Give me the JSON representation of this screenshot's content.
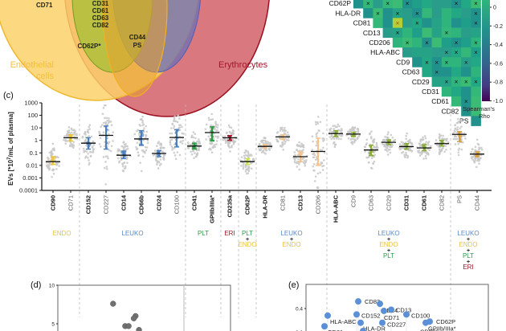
{
  "panels": {
    "c": "(c)",
    "d": "(d)",
    "e": "(e)"
  },
  "venn": {
    "labels": {
      "endothelial_line1": "Endothelial",
      "endothelial_line2": "cells",
      "erythrocytes": "Erythrocytes"
    },
    "colors": {
      "endothelial": "#f9c940",
      "erythrocytes": "#c0202a",
      "platelets": "#9acd32",
      "leukocytes": "#6a6fb8"
    },
    "markers": {
      "endo_only": [
        "CD71"
      ],
      "leuko_endo_plt": [
        "CD31",
        "CD61",
        "CD63",
        "CD82"
      ],
      "plt_endo": [
        "CD62P*"
      ],
      "all": [
        "CD44",
        "PS"
      ]
    }
  },
  "heatmap": {
    "row_labels": [
      "CD62P",
      "HLA-DR",
      "CD81",
      "CD13",
      "CD206",
      "HLA-ABC",
      "CD9",
      "CD63",
      "CD29",
      "CD31",
      "CD61",
      "CD82",
      "PS"
    ],
    "colorbar": {
      "ticks": [
        "0",
        "-0.2",
        "-0.4",
        "-0.6",
        "-0.8",
        "-1.0"
      ],
      "title_line1": "Spearman's",
      "title_line2": "Rho"
    },
    "mark": "×"
  },
  "chart_data": [
    {
      "type": "scatter",
      "title": "",
      "xlabel": "",
      "ylabel": "EVs [*10^7/mL of plasma]",
      "yscale": "log",
      "ylim": [
        0.0001,
        1000
      ],
      "ytick_labels": [
        "1000",
        "100",
        "10",
        "1",
        "0.1",
        "0.01",
        "0.001",
        "0.0001"
      ],
      "categories": [
        "CD90",
        "CD71",
        "CD152",
        "CD227",
        "CD14",
        "CD66b",
        "CD24",
        "CD100",
        "CD41",
        "GPIIb/IIIa*",
        "CD235a",
        "CD62P",
        "HLA-DR",
        "CD81",
        "CD13",
        "CD206",
        "HLA-ABC",
        "CD9",
        "CD63",
        "CD29",
        "CD31",
        "CD61",
        "CD82",
        "PS",
        "CD44"
      ],
      "bold_categories": [
        "CD90",
        "CD152",
        "CD14",
        "CD66b",
        "CD24",
        "CD41",
        "GPIIb/IIIa*",
        "CD235a",
        "CD62P",
        "HLA-DR",
        "CD13",
        "HLA-ABC",
        "CD31",
        "CD61"
      ],
      "medians": [
        0.02,
        1.6,
        0.6,
        2.5,
        0.065,
        1.3,
        0.09,
        1.7,
        0.35,
        4.2,
        1.6,
        0.02,
        0.33,
        1.9,
        0.05,
        0.13,
        3.5,
        3.2,
        0.17,
        0.7,
        0.32,
        0.25,
        0.55,
        3.0,
        0.08
      ],
      "iqr_low": [
        0.012,
        0.9,
        0.2,
        0.2,
        0.035,
        0.4,
        0.05,
        0.3,
        0.2,
        0.9,
        1.0,
        0.012,
        0.25,
        1.2,
        0.02,
        0.01,
        2.0,
        2.0,
        0.06,
        0.45,
        0.2,
        0.15,
        0.35,
        0.8,
        0.05
      ],
      "iqr_high": [
        0.05,
        2.8,
        1.6,
        14,
        0.14,
        6,
        0.15,
        7,
        0.6,
        12,
        2.4,
        0.035,
        0.45,
        2.8,
        0.12,
        1.5,
        6,
        4.5,
        0.4,
        1.1,
        0.55,
        0.45,
        1.0,
        5.0,
        0.12
      ],
      "group_colors": [
        "#e8c440",
        "#e8c440",
        "#4a7fc0",
        "#4a7fc0",
        "#4a7fc0",
        "#4a7fc0",
        "#4a7fc0",
        "#4a7fc0",
        "#2e9a45",
        "#2e9a45",
        "#a0182a",
        "#c8e050",
        "#f5c28a",
        "#f5c28a",
        "#f5c28a",
        "#f5c28a",
        "#8aac3a",
        "#8aac3a",
        "#8aac3a",
        "#8aac3a",
        "#8aac3a",
        "#8aac3a",
        "#8aac3a",
        "#d9a040",
        "#d9a040"
      ],
      "groups": [
        {
          "lines": [
            {
              "text": "ENDO",
              "color": "#e8c440"
            }
          ],
          "span": [
            0,
            1
          ]
        },
        {
          "lines": [
            {
              "text": "LEUKO",
              "color": "#5a8ac4"
            }
          ],
          "span": [
            2,
            7
          ]
        },
        {
          "lines": [
            {
              "text": "PLT",
              "color": "#2e9a45"
            }
          ],
          "span": [
            8,
            9
          ]
        },
        {
          "lines": [
            {
              "text": "ERI",
              "color": "#a0182a"
            }
          ],
          "span": [
            10,
            10
          ]
        },
        {
          "lines": [
            {
              "text": "PLT",
              "color": "#2e9a45"
            },
            {
              "text": "+",
              "color": "#222222"
            },
            {
              "text": "ENDO",
              "color": "#e8c440"
            }
          ],
          "span": [
            11,
            11
          ]
        },
        {
          "lines": [
            {
              "text": "LEUKO",
              "color": "#5a8ac4"
            },
            {
              "text": "+",
              "color": "#222222"
            },
            {
              "text": "ENDO",
              "color": "#e8c440"
            }
          ],
          "span": [
            12,
            15
          ]
        },
        {
          "lines": [
            {
              "text": "LEUKO",
              "color": "#5a8ac4"
            },
            {
              "text": "+",
              "color": "#222222"
            },
            {
              "text": "ENDO",
              "color": "#e8c440"
            },
            {
              "text": "+",
              "color": "#222222"
            },
            {
              "text": "PLT",
              "color": "#2e9a45"
            }
          ],
          "span": [
            16,
            22
          ]
        },
        {
          "lines": [
            {
              "text": "LEUKO",
              "color": "#5a8ac4"
            },
            {
              "text": "+",
              "color": "#222222"
            },
            {
              "text": "ENDO",
              "color": "#e8c440"
            },
            {
              "text": "+",
              "color": "#222222"
            },
            {
              "text": "PLT",
              "color": "#2e9a45"
            },
            {
              "text": "+",
              "color": "#222222"
            },
            {
              "text": "ERI",
              "color": "#a0182a"
            }
          ],
          "span": [
            23,
            24
          ]
        }
      ]
    },
    {
      "type": "scatter",
      "title": "",
      "ytick_labels": [
        "10",
        "5"
      ],
      "ylim": [
        0,
        10
      ],
      "points_visible": [
        {
          "x": 0.32,
          "y": 7.6
        },
        {
          "x": 0.45,
          "y": 6.0
        },
        {
          "x": 0.44,
          "y": 5.7
        },
        {
          "x": 0.39,
          "y": 4.7
        },
        {
          "x": 0.41,
          "y": 4.7
        },
        {
          "x": 0.47,
          "y": 4.2
        }
      ],
      "point_color": "#707070"
    },
    {
      "type": "scatter",
      "title": "",
      "ytick_labels": [
        "0.4",
        "0.2"
      ],
      "ylim": [
        0,
        0.5
      ],
      "points_visible": [
        {
          "label": "CD82",
          "y": 0.46
        },
        {
          "label": "CD24",
          "y": 0.44
        },
        {
          "label": "CD13",
          "y": 0.39
        },
        {
          "label": "CD71",
          "y": 0.38
        },
        {
          "label": "CD100",
          "y": 0.35
        },
        {
          "label": "HLA-ABC",
          "y": 0.34
        },
        {
          "label": "CD152",
          "y": 0.35
        },
        {
          "label": "CD62P",
          "y": 0.29
        },
        {
          "label": "GPIIb/IIIa*",
          "y": 0.28
        },
        {
          "label": "HLA-DR",
          "y": 0.28
        },
        {
          "label": "CD227",
          "y": 0.28
        },
        {
          "label": "CD81",
          "y": 0.25
        },
        {
          "label": "CD63",
          "y": 0.21
        },
        {
          "label": "CD206",
          "y": 0.18
        }
      ],
      "point_color": "#5b8fd6"
    }
  ]
}
